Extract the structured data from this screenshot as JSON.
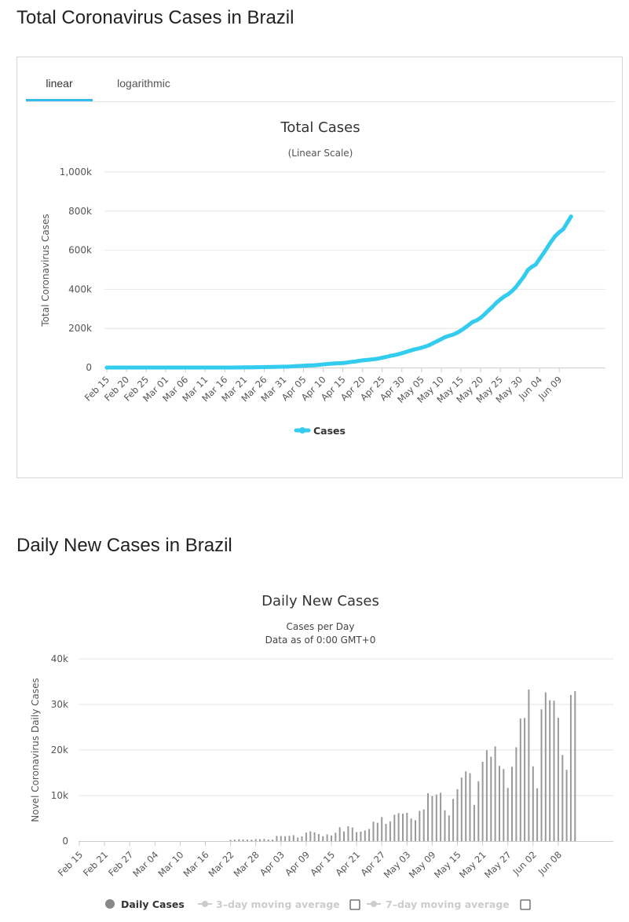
{
  "page": {
    "section1_title": "Total Coronavirus Cases in Brazil",
    "section2_title": "Daily New Cases in Brazil",
    "tabs": {
      "linear": "linear",
      "log": "logarithmic"
    }
  },
  "colors": {
    "line": "#33ccee",
    "bar": "#999999",
    "grid": "#e6e6e6",
    "tab_accent": "#33bbee"
  },
  "chart_data": [
    {
      "type": "line",
      "title": "Total Cases",
      "subtitle": "(Linear Scale)",
      "ylabel": "Total Coronavirus Cases",
      "xlabel": "",
      "ylim": [
        0,
        1000000
      ],
      "yticks": [
        0,
        200000,
        400000,
        600000,
        800000,
        1000000
      ],
      "ytick_labels": [
        "0",
        "200k",
        "400k",
        "600k",
        "800k",
        "1,000k"
      ],
      "xtick_labels": [
        "Feb 15",
        "Feb 20",
        "Feb 25",
        "Mar 01",
        "Mar 06",
        "Mar 11",
        "Mar 16",
        "Mar 21",
        "Mar 26",
        "Mar 31",
        "Apr 05",
        "Apr 10",
        "Apr 15",
        "Apr 20",
        "Apr 25",
        "Apr 30",
        "May 05",
        "May 10",
        "May 15",
        "May 20",
        "May 25",
        "May 30",
        "Jun 04",
        "Jun 09"
      ],
      "legend": [
        "Cases"
      ],
      "series": [
        {
          "name": "Cases",
          "x_start": "Feb 15",
          "step_days": 1,
          "values": [
            0,
            0,
            0,
            0,
            0,
            0,
            0,
            0,
            0,
            0,
            0,
            1,
            1,
            1,
            1,
            2,
            2,
            2,
            2,
            2,
            3,
            3,
            4,
            8,
            13,
            20,
            25,
            31,
            38,
            52,
            98,
            121,
            200,
            234,
            346,
            622,
            904,
            1128,
            1546,
            1924,
            2247,
            2554,
            2985,
            3417,
            3904,
            4256,
            4579,
            5717,
            6836,
            7910,
            9056,
            10360,
            11130,
            12161,
            14034,
            16170,
            18092,
            19638,
            20727,
            22192,
            23430,
            25262,
            28320,
            30425,
            33682,
            36658,
            38654,
            40743,
            43079,
            45757,
            50036,
            54043,
            59324,
            63100,
            67446,
            73235,
            79361,
            85380,
            91589,
            96559,
            101147,
            107780,
            114715,
            125218,
            135106,
            145328,
            155939,
            162699,
            168331,
            177589,
            188974,
            202918,
            218223,
            233142,
            241080,
            254220,
            271628,
            291579,
            310087,
            330890,
            347398,
            363211,
            374898,
            391222,
            411821,
            438238,
            465166,
            498440,
            514849,
            526447,
            555383,
            584016,
            614941,
            645771,
            672846,
            691758,
            707412,
            739503,
            772416
          ]
        }
      ]
    },
    {
      "type": "bar",
      "title": "Daily New Cases",
      "subtitle": "Cases per Day",
      "subtitle2": "Data as of 0:00 GMT+0",
      "ylabel": "Novel Coronavirus Daily Cases",
      "xlabel": "",
      "ylim": [
        0,
        40000
      ],
      "yticks": [
        0,
        10000,
        20000,
        30000,
        40000
      ],
      "ytick_labels": [
        "0",
        "10k",
        "20k",
        "30k",
        "40k"
      ],
      "xtick_labels": [
        "Feb 15",
        "Feb 21",
        "Feb 27",
        "Mar 04",
        "Mar 10",
        "Mar 16",
        "Mar 22",
        "Mar 28",
        "Apr 03",
        "Apr 09",
        "Apr 15",
        "Apr 21",
        "Apr 27",
        "May 03",
        "May 09",
        "May 15",
        "May 21",
        "May 27",
        "Jun 02",
        "Jun 08"
      ],
      "legend": [
        "Daily Cases",
        "3-day moving average",
        "7-day moving average"
      ],
      "series": [
        {
          "name": "Daily Cases",
          "x_start": "Feb 15",
          "step_days": 1,
          "values": [
            0,
            0,
            0,
            0,
            0,
            0,
            0,
            0,
            0,
            0,
            0,
            0,
            0,
            0,
            0,
            0,
            0,
            0,
            0,
            0,
            0,
            0,
            0,
            0,
            0,
            0,
            0,
            0,
            0,
            0,
            0,
            0,
            0,
            0,
            0,
            0,
            280,
            320,
            420,
            380,
            330,
            310,
            430,
            430,
            490,
            350,
            320,
            1140,
            1120,
            1070,
            1150,
            1300,
            770,
            1030,
            1870,
            2140,
            1920,
            1550,
            1090,
            1460,
            1240,
            1830,
            3060,
            2110,
            3260,
            2980,
            1990,
            2090,
            2340,
            2680,
            4280,
            4010,
            5280,
            3780,
            4350,
            5790,
            6130,
            6020,
            6210,
            4970,
            4590,
            6630,
            6940,
            10500,
            9890,
            10220,
            10610,
            6760,
            5630,
            9260,
            11390,
            13940,
            15310,
            14920,
            7940,
            13140,
            17410,
            19950,
            18510,
            20800,
            16510,
            15820,
            11690,
            16330,
            20600,
            26930,
            27030,
            33270,
            16410,
            11600,
            28930,
            32630,
            30930,
            30830,
            27080,
            18920,
            15650,
            32090,
            32910
          ]
        }
      ]
    }
  ]
}
